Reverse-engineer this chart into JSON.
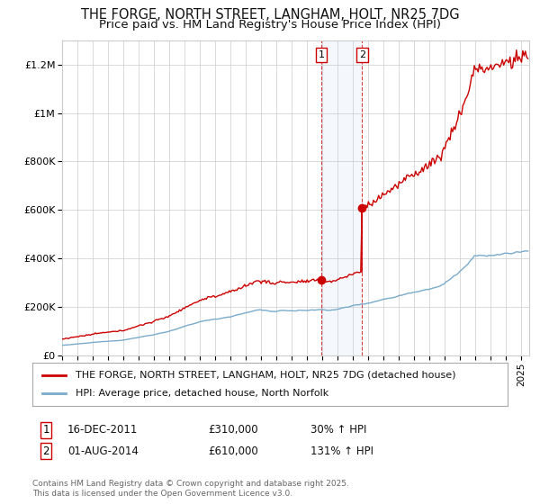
{
  "title": "THE FORGE, NORTH STREET, LANGHAM, HOLT, NR25 7DG",
  "subtitle": "Price paid vs. HM Land Registry's House Price Index (HPI)",
  "ylim": [
    0,
    1300000
  ],
  "yticks": [
    0,
    200000,
    400000,
    600000,
    800000,
    1000000,
    1200000
  ],
  "ytick_labels": [
    "£0",
    "£200K",
    "£400K",
    "£600K",
    "£800K",
    "£1M",
    "£1.2M"
  ],
  "background_color": "#ffffff",
  "grid_color": "#cccccc",
  "red_line_color": "#cc0000",
  "blue_line_color": "#7aabcc",
  "sale1_price": 310000,
  "sale1_label": "16-DEC-2011",
  "sale1_pct": "30%",
  "sale2_price": 610000,
  "sale2_label": "01-AUG-2014",
  "sale2_pct": "131%",
  "legend1": "THE FORGE, NORTH STREET, LANGHAM, HOLT, NR25 7DG (detached house)",
  "legend2": "HPI: Average price, detached house, North Norfolk",
  "footnote": "Contains HM Land Registry data © Crown copyright and database right 2025.\nThis data is licensed under the Open Government Licence v3.0."
}
